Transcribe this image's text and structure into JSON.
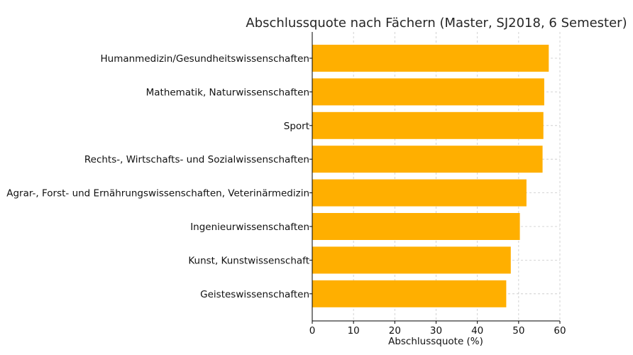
{
  "chart_data": {
    "type": "bar",
    "orientation": "horizontal",
    "title": "Abschlussquote nach Fächern (Master, SJ2018, 6 Semester)",
    "xlabel": "Abschlussquote (%)",
    "ylabel": "",
    "xlim": [
      0,
      60
    ],
    "xticks": [
      0,
      10,
      20,
      30,
      40,
      50,
      60
    ],
    "grid": true,
    "bar_color": "#FFAF00",
    "categories": [
      "Humanmedizin/Gesundheitswissenschaften",
      "Mathematik, Naturwissenschaften",
      "Sport",
      "Rechts-, Wirtschafts- und Sozialwissenschaften",
      "Agrar-, Forst- und Ernährungswissenschaften, Veterinärmedizin",
      "Ingenieurwissenschaften",
      "Kunst, Kunstwissenschaft",
      "Geisteswissenschaften"
    ],
    "values": [
      57.3,
      56.2,
      56.0,
      55.8,
      51.9,
      50.3,
      48.1,
      47.0
    ]
  }
}
